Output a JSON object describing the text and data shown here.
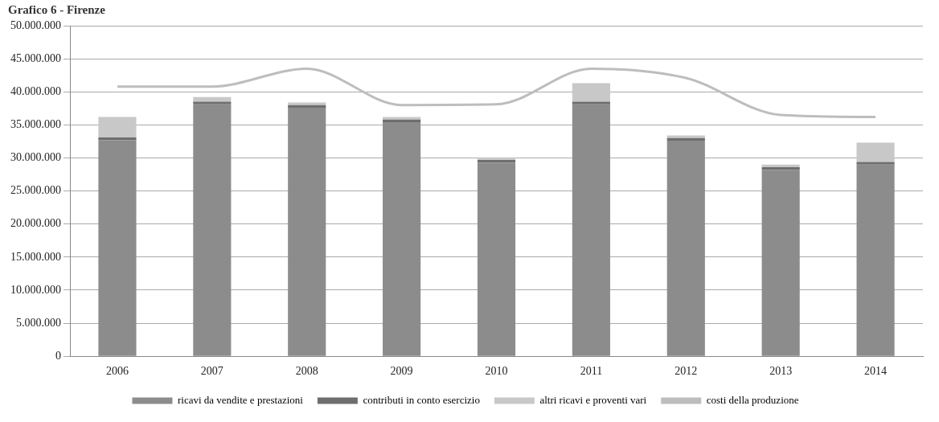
{
  "chart_data": {
    "type": "bar",
    "title": "Grafico 6 - Firenze",
    "stacked": true,
    "categories": [
      "2006",
      "2007",
      "2008",
      "2009",
      "2010",
      "2011",
      "2012",
      "2013",
      "2014"
    ],
    "series": [
      {
        "name": "ricavi da vendite e prestazioni",
        "color": "#8c8c8c",
        "values": [
          32700000,
          38100000,
          37600000,
          35400000,
          29300000,
          38100000,
          32600000,
          28200000,
          29000000
        ]
      },
      {
        "name": "contributi in conto esercizio",
        "color": "#6e6e6e",
        "values": [
          400000,
          400000,
          400000,
          400000,
          400000,
          400000,
          400000,
          400000,
          400000
        ]
      },
      {
        "name": "altri ricavi e proventi vari",
        "color": "#c8c8c8",
        "values": [
          3100000,
          700000,
          400000,
          400000,
          400000,
          2800000,
          400000,
          400000,
          2900000
        ]
      },
      {
        "name": "costi della produzione",
        "type": "line",
        "color": "#bdbdbd",
        "marker": "none",
        "values": [
          40800000,
          40800000,
          43500000,
          38000000,
          38100000,
          43500000,
          42100000,
          36500000,
          36200000
        ]
      }
    ],
    "ylim": [
      0,
      50000000
    ],
    "yticks": [
      {
        "value": 0,
        "label": "0"
      },
      {
        "value": 5000000,
        "label": "5.000.000"
      },
      {
        "value": 10000000,
        "label": "10.000.000"
      },
      {
        "value": 15000000,
        "label": "15.000.000"
      },
      {
        "value": 20000000,
        "label": "20.000.000"
      },
      {
        "value": 25000000,
        "label": "25.000.000"
      },
      {
        "value": 30000000,
        "label": "30.000.000"
      },
      {
        "value": 35000000,
        "label": "35.000.000"
      },
      {
        "value": 40000000,
        "label": "40.000.000"
      },
      {
        "value": 45000000,
        "label": "45.000.000"
      },
      {
        "value": 50000000,
        "label": "50.000.000"
      }
    ],
    "grid": "y",
    "legend": "bottom"
  }
}
